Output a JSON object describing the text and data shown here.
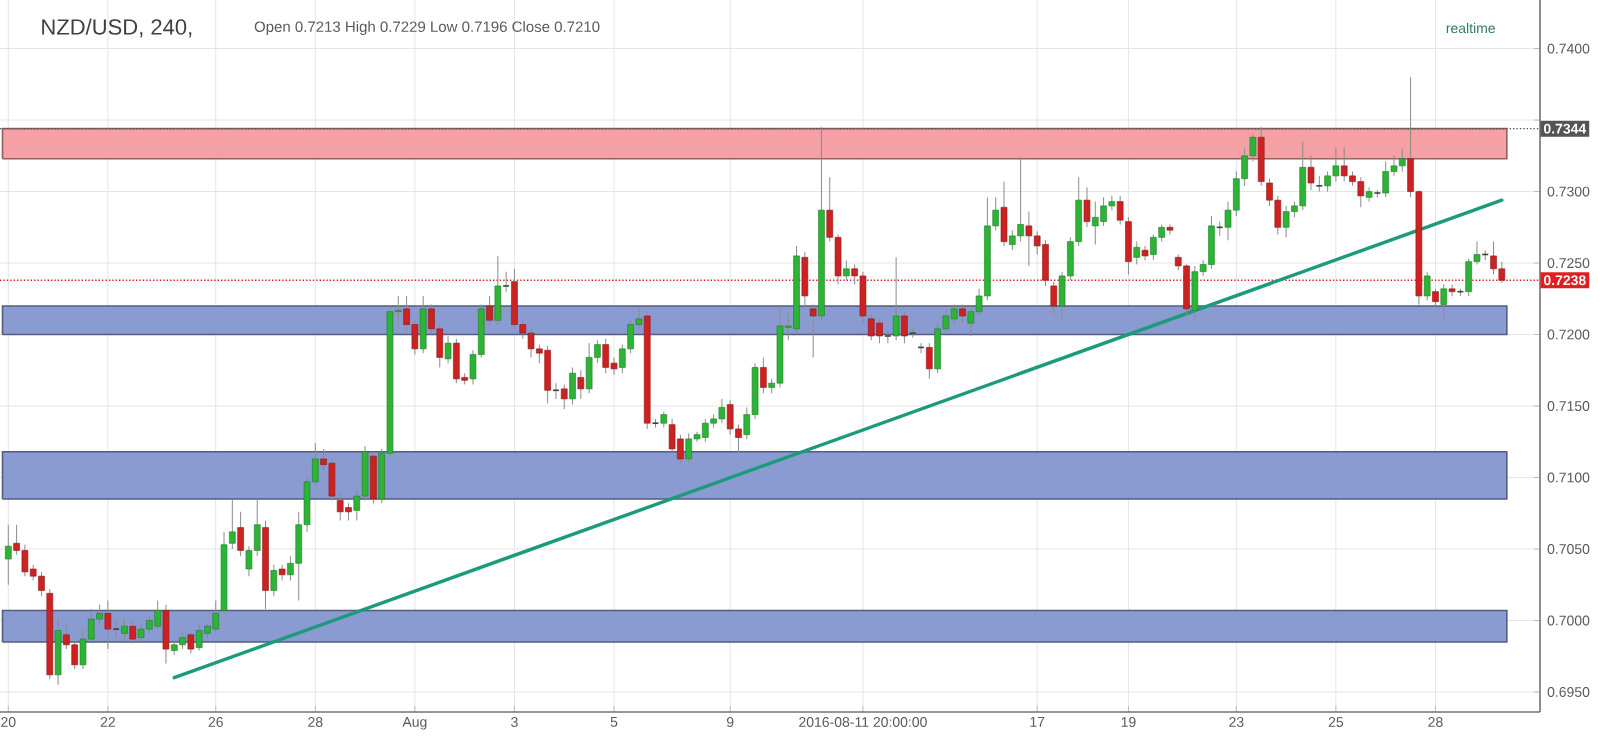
{
  "chart_data": {
    "type": "candlestick",
    "title": "NZD/USD, 240,",
    "subtitle": "Open 0.7213 High 0.7229 Low 0.7196 Close 0.7210",
    "annotations": [
      "realtime"
    ],
    "categories": [
      "20",
      null,
      null,
      null,
      null,
      null,
      null,
      null,
      null,
      null,
      null,
      null,
      "22",
      null,
      null,
      null,
      null,
      null,
      null,
      null,
      null,
      null,
      null,
      null,
      null,
      "26",
      null,
      null,
      null,
      null,
      null,
      null,
      null,
      null,
      null,
      null,
      null,
      "28",
      null,
      null,
      null,
      null,
      null,
      null,
      null,
      null,
      null,
      null,
      null,
      "Aug",
      null,
      null,
      null,
      null,
      null,
      null,
      null,
      null,
      null,
      null,
      null,
      "3",
      null,
      null,
      null,
      null,
      null,
      null,
      null,
      null,
      null,
      null,
      null,
      "5",
      null,
      null,
      null,
      null,
      null,
      null,
      null,
      null,
      null,
      null,
      null,
      null,
      null,
      "9",
      null,
      null,
      null,
      null,
      null,
      null,
      null,
      null,
      null,
      null,
      null,
      null,
      null,
      null,
      null,
      "2016-08-11 20:00:00",
      null,
      null,
      null,
      null,
      null,
      null,
      null,
      null,
      null,
      null,
      null,
      null,
      null,
      null,
      null,
      null,
      null,
      null,
      null,
      null,
      "17",
      null,
      null,
      null,
      null,
      null,
      null,
      null,
      null,
      null,
      null,
      "19",
      null,
      null,
      null,
      null,
      null,
      null,
      null,
      null,
      null,
      null,
      null,
      null,
      "23",
      null,
      null,
      null,
      null,
      null,
      null,
      null,
      null,
      null,
      null,
      null,
      "25",
      null,
      null,
      null,
      null,
      null,
      null,
      null,
      null,
      null,
      null,
      null,
      "28",
      null,
      null,
      null,
      null,
      null,
      null,
      null,
      null
    ],
    "ohlc": [
      [
        0.7043,
        0.7067,
        0.7025,
        0.7052
      ],
      [
        0.7054,
        0.7067,
        0.7046,
        0.7049
      ],
      [
        0.7049,
        0.7053,
        0.7031,
        0.7034
      ],
      [
        0.7036,
        0.7039,
        0.7028,
        0.7031
      ],
      [
        0.7031,
        0.7034,
        0.7017,
        0.7021
      ],
      [
        0.7019,
        0.7022,
        0.6959,
        0.6962
      ],
      [
        0.6962,
        0.7001,
        0.6955,
        0.6993
      ],
      [
        0.699,
        0.6997,
        0.698,
        0.6983
      ],
      [
        0.6983,
        0.6986,
        0.6966,
        0.6969
      ],
      [
        0.6969,
        0.6994,
        0.6966,
        0.6987
      ],
      [
        0.6987,
        0.7008,
        0.6986,
        0.7001
      ],
      [
        0.7001,
        0.7011,
        0.6997,
        0.7005
      ],
      [
        0.7005,
        0.7014,
        0.698,
        0.6994
      ],
      [
        0.6994,
        0.7,
        0.6988,
        0.6994
      ],
      [
        0.6991,
        0.7001,
        0.6986,
        0.6996
      ],
      [
        0.6996,
        0.7,
        0.6984,
        0.6987
      ],
      [
        0.6988,
        0.6997,
        0.6985,
        0.6994
      ],
      [
        0.6994,
        0.7003,
        0.6991,
        0.7
      ],
      [
        0.6996,
        0.7014,
        0.6994,
        0.7007
      ],
      [
        0.7007,
        0.7011,
        0.697,
        0.698
      ],
      [
        0.6979,
        0.6986,
        0.6976,
        0.6983
      ],
      [
        0.6983,
        0.6991,
        0.698,
        0.6988
      ],
      [
        0.699,
        0.6993,
        0.6977,
        0.698
      ],
      [
        0.6981,
        0.6997,
        0.6979,
        0.6993
      ],
      [
        0.6991,
        0.6998,
        0.6988,
        0.6996
      ],
      [
        0.6994,
        0.7014,
        0.6991,
        0.7005
      ],
      [
        0.7007,
        0.7062,
        0.7005,
        0.7053
      ],
      [
        0.7054,
        0.7085,
        0.705,
        0.7062
      ],
      [
        0.7065,
        0.7076,
        0.7045,
        0.7049
      ],
      [
        0.7036,
        0.7052,
        0.7031,
        0.7049
      ],
      [
        0.7049,
        0.7085,
        0.7045,
        0.7067
      ],
      [
        0.7065,
        0.707,
        0.7008,
        0.7021
      ],
      [
        0.7021,
        0.7039,
        0.7017,
        0.7035
      ],
      [
        0.7036,
        0.7039,
        0.7028,
        0.7032
      ],
      [
        0.7032,
        0.7045,
        0.7028,
        0.704
      ],
      [
        0.704,
        0.7076,
        0.7014,
        0.7067
      ],
      [
        0.7067,
        0.7101,
        0.7062,
        0.7097
      ],
      [
        0.7097,
        0.7124,
        0.7094,
        0.7113
      ],
      [
        0.7113,
        0.712,
        0.7105,
        0.7109
      ],
      [
        0.711,
        0.7113,
        0.7084,
        0.7087
      ],
      [
        0.7084,
        0.709,
        0.707,
        0.7076
      ],
      [
        0.7079,
        0.7082,
        0.707,
        0.7076
      ],
      [
        0.7077,
        0.7091,
        0.707,
        0.7087
      ],
      [
        0.7087,
        0.7122,
        0.7084,
        0.7118
      ],
      [
        0.7115,
        0.7118,
        0.7082,
        0.7085
      ],
      [
        0.7085,
        0.712,
        0.7082,
        0.7117
      ],
      [
        0.7117,
        0.722,
        0.7114,
        0.7216
      ],
      [
        0.7216,
        0.7227,
        0.7206,
        0.7217
      ],
      [
        0.7218,
        0.7227,
        0.7203,
        0.7207
      ],
      [
        0.7207,
        0.721,
        0.7186,
        0.719
      ],
      [
        0.719,
        0.7227,
        0.7187,
        0.7218
      ],
      [
        0.7218,
        0.7221,
        0.72,
        0.7204
      ],
      [
        0.7204,
        0.7207,
        0.7177,
        0.7184
      ],
      [
        0.7183,
        0.7199,
        0.718,
        0.7194
      ],
      [
        0.7194,
        0.7197,
        0.7166,
        0.7169
      ],
      [
        0.717,
        0.7173,
        0.7165,
        0.7168
      ],
      [
        0.7169,
        0.7189,
        0.7165,
        0.7186
      ],
      [
        0.7186,
        0.7221,
        0.7184,
        0.7218
      ],
      [
        0.722,
        0.7227,
        0.7206,
        0.721
      ],
      [
        0.721,
        0.7255,
        0.7207,
        0.7234
      ],
      [
        0.7234,
        0.7244,
        0.723,
        0.7234
      ],
      [
        0.7237,
        0.7246,
        0.7204,
        0.7207
      ],
      [
        0.7207,
        0.721,
        0.7197,
        0.7201
      ],
      [
        0.7201,
        0.7206,
        0.7184,
        0.719
      ],
      [
        0.719,
        0.7193,
        0.718,
        0.7187
      ],
      [
        0.7189,
        0.7192,
        0.7152,
        0.7161
      ],
      [
        0.7161,
        0.7166,
        0.7155,
        0.7161
      ],
      [
        0.7162,
        0.7165,
        0.7148,
        0.7155
      ],
      [
        0.7155,
        0.7177,
        0.7151,
        0.7173
      ],
      [
        0.717,
        0.7175,
        0.7155,
        0.7162
      ],
      [
        0.7162,
        0.7194,
        0.7159,
        0.7184
      ],
      [
        0.7184,
        0.7196,
        0.718,
        0.7193
      ],
      [
        0.7193,
        0.7197,
        0.7173,
        0.7177
      ],
      [
        0.718,
        0.7184,
        0.7172,
        0.7176
      ],
      [
        0.7177,
        0.7193,
        0.7173,
        0.719
      ],
      [
        0.719,
        0.7211,
        0.7187,
        0.7207
      ],
      [
        0.7207,
        0.7218,
        0.7204,
        0.7211
      ],
      [
        0.7213,
        0.7216,
        0.7134,
        0.7138
      ],
      [
        0.7138,
        0.7141,
        0.7135,
        0.7138
      ],
      [
        0.7138,
        0.7146,
        0.7135,
        0.7144
      ],
      [
        0.7137,
        0.7141,
        0.7117,
        0.712
      ],
      [
        0.7127,
        0.713,
        0.711,
        0.7113
      ],
      [
        0.7113,
        0.7131,
        0.711,
        0.7127
      ],
      [
        0.7127,
        0.7132,
        0.7125,
        0.713
      ],
      [
        0.7128,
        0.7141,
        0.7125,
        0.7138
      ],
      [
        0.7138,
        0.7144,
        0.7135,
        0.7141
      ],
      [
        0.7141,
        0.7155,
        0.7138,
        0.7149
      ],
      [
        0.7151,
        0.7154,
        0.713,
        0.7134
      ],
      [
        0.7134,
        0.7137,
        0.7117,
        0.7128
      ],
      [
        0.713,
        0.7149,
        0.7127,
        0.7144
      ],
      [
        0.7144,
        0.718,
        0.7141,
        0.7177
      ],
      [
        0.7177,
        0.7184,
        0.7159,
        0.7163
      ],
      [
        0.7163,
        0.7169,
        0.7159,
        0.7166
      ],
      [
        0.7166,
        0.722,
        0.7163,
        0.7206
      ],
      [
        0.7205,
        0.7215,
        0.7196,
        0.7206
      ],
      [
        0.7204,
        0.7262,
        0.7201,
        0.7255
      ],
      [
        0.7254,
        0.7258,
        0.7218,
        0.7227
      ],
      [
        0.7218,
        0.7221,
        0.7184,
        0.7213
      ],
      [
        0.7213,
        0.7345,
        0.721,
        0.7287
      ],
      [
        0.7287,
        0.731,
        0.7265,
        0.7268
      ],
      [
        0.7268,
        0.727,
        0.7235,
        0.7241
      ],
      [
        0.7241,
        0.7252,
        0.7238,
        0.7246
      ],
      [
        0.7246,
        0.7249,
        0.7235,
        0.7241
      ],
      [
        0.7241,
        0.7244,
        0.7207,
        0.7213
      ],
      [
        0.7211,
        0.7214,
        0.7196,
        0.7199
      ],
      [
        0.7208,
        0.7211,
        0.7194,
        0.7199
      ],
      [
        0.7199,
        0.7203,
        0.7194,
        0.7199
      ],
      [
        0.7199,
        0.7254,
        0.7196,
        0.7213
      ],
      [
        0.7213,
        0.7216,
        0.7194,
        0.7199
      ],
      [
        0.7201,
        0.7204,
        0.7198,
        0.7201
      ],
      [
        0.7191,
        0.7194,
        0.7187,
        0.7191
      ],
      [
        0.7191,
        0.7194,
        0.7169,
        0.7176
      ],
      [
        0.7176,
        0.7208,
        0.7173,
        0.7204
      ],
      [
        0.7204,
        0.7218,
        0.7201,
        0.7213
      ],
      [
        0.7211,
        0.7221,
        0.7207,
        0.7218
      ],
      [
        0.7218,
        0.7221,
        0.7208,
        0.7213
      ],
      [
        0.7208,
        0.7218,
        0.7199,
        0.7216
      ],
      [
        0.7216,
        0.7232,
        0.7213,
        0.7227
      ],
      [
        0.7227,
        0.7296,
        0.7224,
        0.7276
      ],
      [
        0.7276,
        0.7296,
        0.7273,
        0.7287
      ],
      [
        0.7289,
        0.7307,
        0.7262,
        0.7265
      ],
      [
        0.7263,
        0.7273,
        0.7259,
        0.7269
      ],
      [
        0.7269,
        0.7324,
        0.7265,
        0.7277
      ],
      [
        0.7276,
        0.7286,
        0.7248,
        0.7269
      ],
      [
        0.7269,
        0.7272,
        0.7256,
        0.7262
      ],
      [
        0.7263,
        0.7266,
        0.7234,
        0.7238
      ],
      [
        0.7234,
        0.7237,
        0.7214,
        0.722
      ],
      [
        0.722,
        0.7244,
        0.721,
        0.7241
      ],
      [
        0.7241,
        0.7268,
        0.7238,
        0.7265
      ],
      [
        0.7265,
        0.731,
        0.7262,
        0.7294
      ],
      [
        0.7294,
        0.7303,
        0.7275,
        0.7279
      ],
      [
        0.7276,
        0.7293,
        0.7263,
        0.7282
      ],
      [
        0.7279,
        0.7296,
        0.7276,
        0.729
      ],
      [
        0.729,
        0.7297,
        0.7287,
        0.7293
      ],
      [
        0.7293,
        0.7297,
        0.7277,
        0.728
      ],
      [
        0.7279,
        0.7282,
        0.7242,
        0.7251
      ],
      [
        0.7254,
        0.7265,
        0.7249,
        0.7261
      ],
      [
        0.7259,
        0.7262,
        0.7252,
        0.7255
      ],
      [
        0.7256,
        0.727,
        0.7252,
        0.7268
      ],
      [
        0.7268,
        0.7277,
        0.7265,
        0.7275
      ],
      [
        0.7275,
        0.7277,
        0.727,
        0.7273
      ],
      [
        0.7254,
        0.7256,
        0.7245,
        0.7248
      ],
      [
        0.7248,
        0.7249,
        0.7213,
        0.7218
      ],
      [
        0.7217,
        0.7248,
        0.721,
        0.7244
      ],
      [
        0.7244,
        0.7252,
        0.7241,
        0.7249
      ],
      [
        0.7249,
        0.7283,
        0.7246,
        0.7276
      ],
      [
        0.7275,
        0.7279,
        0.7269,
        0.7275
      ],
      [
        0.7275,
        0.7293,
        0.7266,
        0.7287
      ],
      [
        0.7287,
        0.7314,
        0.7283,
        0.7309
      ],
      [
        0.7309,
        0.733,
        0.7304,
        0.7325
      ],
      [
        0.7325,
        0.734,
        0.7321,
        0.7338
      ],
      [
        0.7338,
        0.7345,
        0.7304,
        0.7307
      ],
      [
        0.7306,
        0.7309,
        0.729,
        0.7294
      ],
      [
        0.7294,
        0.7297,
        0.727,
        0.7275
      ],
      [
        0.7275,
        0.729,
        0.7268,
        0.7286
      ],
      [
        0.7286,
        0.7293,
        0.7282,
        0.729
      ],
      [
        0.729,
        0.7335,
        0.7287,
        0.7317
      ],
      [
        0.7317,
        0.7325,
        0.7301,
        0.7306
      ],
      [
        0.7304,
        0.7311,
        0.73,
        0.7304
      ],
      [
        0.7304,
        0.7314,
        0.73,
        0.7311
      ],
      [
        0.7311,
        0.7331,
        0.7307,
        0.7318
      ],
      [
        0.7318,
        0.7331,
        0.7307,
        0.7311
      ],
      [
        0.7311,
        0.7314,
        0.7304,
        0.7307
      ],
      [
        0.7307,
        0.731,
        0.7289,
        0.7297
      ],
      [
        0.7296,
        0.7303,
        0.7293,
        0.73
      ],
      [
        0.7299,
        0.7301,
        0.7296,
        0.7299
      ],
      [
        0.7299,
        0.7321,
        0.7296,
        0.7314
      ],
      [
        0.7314,
        0.7325,
        0.7311,
        0.7318
      ],
      [
        0.7318,
        0.733,
        0.7314,
        0.7323
      ],
      [
        0.7323,
        0.738,
        0.7296,
        0.73
      ],
      [
        0.73,
        0.7301,
        0.7221,
        0.7227
      ],
      [
        0.7227,
        0.7244,
        0.7224,
        0.7241
      ],
      [
        0.723,
        0.7232,
        0.722,
        0.7223
      ],
      [
        0.7221,
        0.7235,
        0.7211,
        0.7232
      ],
      [
        0.7232,
        0.7235,
        0.7227,
        0.723
      ],
      [
        0.723,
        0.7232,
        0.7227,
        0.723
      ],
      [
        0.723,
        0.7253,
        0.7227,
        0.7251
      ],
      [
        0.7251,
        0.7265,
        0.7249,
        0.7256
      ],
      [
        0.7256,
        0.7259,
        0.7252,
        0.7256
      ],
      [
        0.7255,
        0.7265,
        0.7242,
        0.7246
      ],
      [
        0.7246,
        0.7251,
        0.7236,
        0.7238
      ]
    ],
    "series": [
      {
        "type": "line",
        "color": "#1b9a7c",
        "values": [
          null,
          null,
          null,
          null,
          null,
          null,
          null,
          null,
          null,
          null,
          null,
          null,
          null,
          null,
          null,
          null,
          null,
          null,
          null,
          null,
          0.696,
          null,
          null,
          null,
          null,
          null,
          null,
          null,
          null,
          null,
          null,
          null,
          null,
          null,
          null,
          null,
          null,
          null,
          null,
          null,
          null,
          null,
          null,
          null,
          null,
          null,
          null,
          null,
          null,
          null,
          null,
          null,
          null,
          null,
          null,
          null,
          null,
          null,
          null,
          null,
          null,
          null,
          null,
          null,
          null,
          null,
          null,
          null,
          null,
          null,
          null,
          null,
          null,
          null,
          null,
          null,
          null,
          null,
          null,
          null,
          null,
          null,
          null,
          null,
          null,
          null,
          null,
          null,
          null,
          null,
          null,
          null,
          null,
          null,
          null,
          null,
          null,
          null,
          null,
          null,
          null,
          null,
          null,
          null,
          null,
          null,
          null,
          null,
          null,
          null,
          null,
          null,
          null,
          null,
          null,
          null,
          null,
          null,
          null,
          null,
          null,
          null,
          null,
          null,
          null,
          null,
          null,
          null,
          null,
          null,
          null,
          null,
          null,
          null,
          null,
          null,
          null,
          null,
          null,
          null,
          null,
          null,
          null,
          null,
          null,
          null,
          null,
          null,
          null,
          null,
          null,
          null,
          null,
          null,
          null,
          null,
          null,
          null,
          null,
          null,
          null,
          null,
          null,
          null,
          null,
          null,
          null,
          null,
          null,
          null,
          null,
          null,
          null,
          null,
          null,
          null,
          null,
          null,
          null,
          null,
          0.7294
        ]
      }
    ],
    "ylim": [
      0.6936,
      0.7434
    ],
    "yticks": [
      {
        "value": 0.695,
        "label": "0.6950"
      },
      {
        "value": 0.7,
        "label": "0.7000"
      },
      {
        "value": 0.705,
        "label": "0.7050"
      },
      {
        "value": 0.71,
        "label": "0.7100"
      },
      {
        "value": 0.715,
        "label": "0.7150"
      },
      {
        "value": 0.72,
        "label": "0.7200"
      },
      {
        "value": 0.725,
        "label": "0.7250"
      },
      {
        "value": 0.73,
        "label": "0.7300"
      },
      {
        "value": 0.735,
        "label": null
      },
      {
        "value": 0.74,
        "label": "0.7400"
      }
    ],
    "ref_lines": [
      {
        "axis": "y",
        "value": 0.7344,
        "label": "0.7344",
        "color": "#555555",
        "line_style": "dotted"
      },
      {
        "axis": "y",
        "value": 0.7238,
        "label": "0.7238",
        "color": "#e02020",
        "line_style": "dotted"
      }
    ],
    "bands": [
      {
        "axis": "y",
        "from": 0.7323,
        "to": 0.7344,
        "color": "#f4a0a4"
      },
      {
        "axis": "y",
        "from": 0.72,
        "to": 0.722,
        "color": "#8a9bd2"
      },
      {
        "axis": "y",
        "from": 0.7085,
        "to": 0.7118,
        "color": "#8a9bd2"
      },
      {
        "axis": "y",
        "from": 0.6985,
        "to": 0.7007,
        "color": "#8a9bd2"
      }
    ],
    "grid": true
  }
}
